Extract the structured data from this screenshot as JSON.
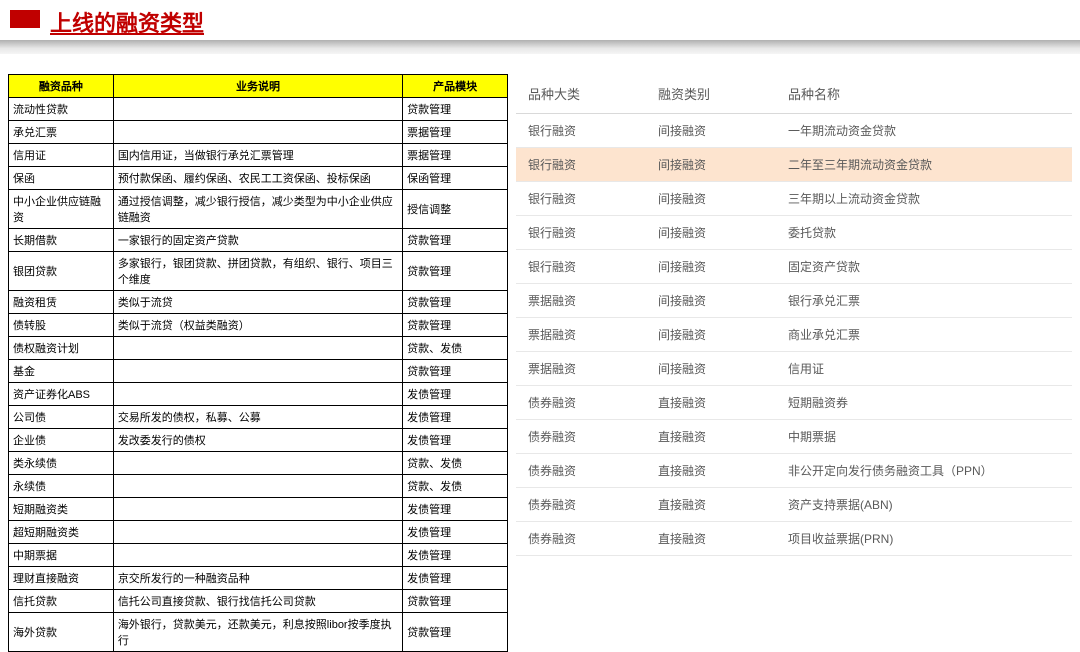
{
  "title": "上线的融资类型",
  "leftTable": {
    "headers": [
      "融资品种",
      "业务说明",
      "产品模块"
    ],
    "rows": [
      [
        "流动性贷款",
        "",
        "贷款管理"
      ],
      [
        "承兑汇票",
        "",
        "票据管理"
      ],
      [
        "信用证",
        "国内信用证，当做银行承兑汇票管理",
        "票据管理"
      ],
      [
        "保函",
        "预付款保函、履约保函、农民工工资保函、投标保函",
        "保函管理"
      ],
      [
        "中小企业供应链融资",
        "通过授信调整，减少银行授信，减少类型为中小企业供应链融资",
        "授信调整"
      ],
      [
        "长期借款",
        "一家银行的固定资产贷款",
        "贷款管理"
      ],
      [
        "银团贷款",
        "多家银行，银团贷款、拼团贷款，有组织、银行、项目三个维度",
        "贷款管理"
      ],
      [
        "融资租赁",
        "类似于流贷",
        "贷款管理"
      ],
      [
        "债转股",
        "类似于流贷（权益类融资）",
        "贷款管理"
      ],
      [
        "债权融资计划",
        "",
        "贷款、发债"
      ],
      [
        "基金",
        "",
        "贷款管理"
      ],
      [
        "资产证券化ABS",
        "",
        "发债管理"
      ],
      [
        "公司债",
        "交易所发的债权，私募、公募",
        "发债管理"
      ],
      [
        "企业债",
        "发改委发行的债权",
        "发债管理"
      ],
      [
        "类永续债",
        "",
        "贷款、发债"
      ],
      [
        "永续债",
        "",
        "贷款、发债"
      ],
      [
        "短期融资类",
        "",
        "发债管理"
      ],
      [
        "超短期融资类",
        "",
        "发债管理"
      ],
      [
        "中期票据",
        "",
        "发债管理"
      ],
      [
        "理财直接融资",
        "京交所发行的一种融资品种",
        "发债管理"
      ],
      [
        "信托贷款",
        "信托公司直接贷款、银行找信托公司贷款",
        "贷款管理"
      ],
      [
        "海外贷款",
        "海外银行，贷款美元，还款美元，利息按照libor按季度执行",
        "贷款管理"
      ]
    ]
  },
  "rightTable": {
    "headers": [
      "品种大类",
      "融资类别",
      "品种名称"
    ],
    "highlightIndex": 1,
    "rows": [
      [
        "银行融资",
        "间接融资",
        "一年期流动资金贷款"
      ],
      [
        "银行融资",
        "间接融资",
        "二年至三年期流动资金贷款"
      ],
      [
        "银行融资",
        "间接融资",
        "三年期以上流动资金贷款"
      ],
      [
        "银行融资",
        "间接融资",
        "委托贷款"
      ],
      [
        "银行融资",
        "间接融资",
        "固定资产贷款"
      ],
      [
        "票据融资",
        "间接融资",
        "银行承兑汇票"
      ],
      [
        "票据融资",
        "间接融资",
        "商业承兑汇票"
      ],
      [
        "票据融资",
        "间接融资",
        "信用证"
      ],
      [
        "债券融资",
        "直接融资",
        "短期融资券"
      ],
      [
        "债券融资",
        "直接融资",
        "中期票据"
      ],
      [
        "债券融资",
        "直接融资",
        "非公开定向发行债务融资工具（PPN）"
      ],
      [
        "债券融资",
        "直接融资",
        "资产支持票据(ABN)"
      ],
      [
        "债券融资",
        "直接融资",
        "项目收益票据(PRN)"
      ]
    ]
  }
}
